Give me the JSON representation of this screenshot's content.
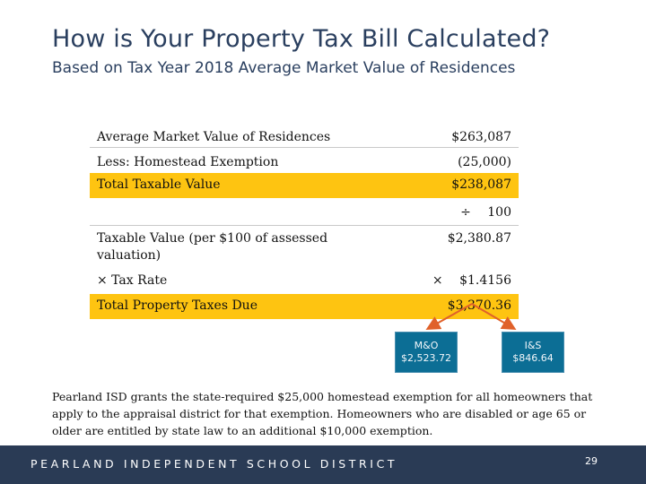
{
  "header": {
    "title": "How is Your Property Tax Bill Calculated?",
    "subtitle": "Based on Tax Year 2018 Average Market Value of Residences"
  },
  "calculation": {
    "rows": [
      {
        "label": "Average Market Value of Residences",
        "operator": "",
        "value": "$263,087"
      },
      {
        "label": "Less: Homestead Exemption",
        "operator": "",
        "value": "(25,000)"
      },
      {
        "label": "Total Taxable Value",
        "operator": "",
        "value": "$238,087"
      },
      {
        "label": "",
        "operator": "÷",
        "value": "100"
      },
      {
        "label": "Taxable Value (per $100 of assessed valuation)",
        "operator": "",
        "value": "$2,380.87"
      },
      {
        "label": "× Tax Rate",
        "operator": "×",
        "value": "$1.4156"
      },
      {
        "label": "Total Property Taxes Due",
        "operator": "",
        "value": "$3,370.36"
      }
    ]
  },
  "breakdown": {
    "mo": {
      "label": "M&O",
      "value": "$2,523.72"
    },
    "is": {
      "label": "I&S",
      "value": "$846.64"
    }
  },
  "note": "Pearland ISD grants the state-required $25,000 homestead exemption for all homeowners that apply to the appraisal district for that exemption.  Homeowners who are disabled or age 65 or older are entitled by state law to an additional $10,000 exemption.",
  "footer": {
    "district": "PEARLAND INDEPENDENT SCHOOL DISTRICT",
    "page_number": "29"
  },
  "colors": {
    "highlight": "#fec411",
    "footer_bg": "#2a3b55",
    "box_bg": "#0c6e95",
    "arrow": "#e0612a",
    "title": "#2a3f5f"
  }
}
